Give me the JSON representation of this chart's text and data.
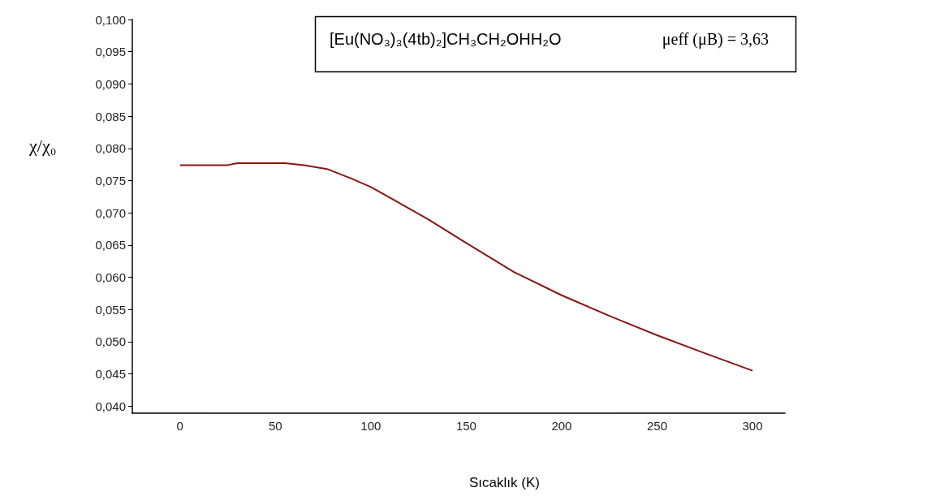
{
  "chart_data": {
    "type": "line",
    "xlabel": "Sıcaklık (K)",
    "ylabel": "χ/χ₀",
    "annotations": [
      "[Eu(NO₃)₃(4tb)₂]CH₃CH₂OHH₂O",
      "μeff (μB) = 3,63"
    ],
    "x": [
      0,
      25,
      30,
      55,
      65,
      77,
      90,
      100,
      115,
      130,
      150,
      175,
      200,
      225,
      250,
      275,
      300
    ],
    "series": [
      {
        "color": "#8b1414",
        "values": [
          0.0774,
          0.0774,
          0.0777,
          0.0777,
          0.0774,
          0.0768,
          0.0753,
          0.074,
          0.0715,
          0.069,
          0.0653,
          0.0608,
          0.0572,
          0.054,
          0.051,
          0.0482,
          0.0455
        ]
      }
    ],
    "xlim": [
      -25,
      317
    ],
    "xticks": [
      0,
      50,
      100,
      150,
      200,
      250,
      300
    ],
    "ylim": [
      0.0389,
      0.1
    ],
    "yticks": [
      {
        "value": 0.04,
        "label": "0,040"
      },
      {
        "value": 0.045,
        "label": "0,045"
      },
      {
        "value": 0.05,
        "label": "0,050"
      },
      {
        "value": 0.055,
        "label": "0,055"
      },
      {
        "value": 0.06,
        "label": "0,060"
      },
      {
        "value": 0.065,
        "label": "0,065"
      },
      {
        "value": 0.07,
        "label": "0,070"
      },
      {
        "value": 0.075,
        "label": "0,075"
      },
      {
        "value": 0.08,
        "label": "0,080"
      },
      {
        "value": 0.085,
        "label": "0,085"
      },
      {
        "value": 0.09,
        "label": "0,090"
      },
      {
        "value": 0.095,
        "label": "0,095"
      },
      {
        "value": 0.1,
        "label": "0,100"
      }
    ],
    "grid": false,
    "marker": "none",
    "line_style": "solid"
  }
}
